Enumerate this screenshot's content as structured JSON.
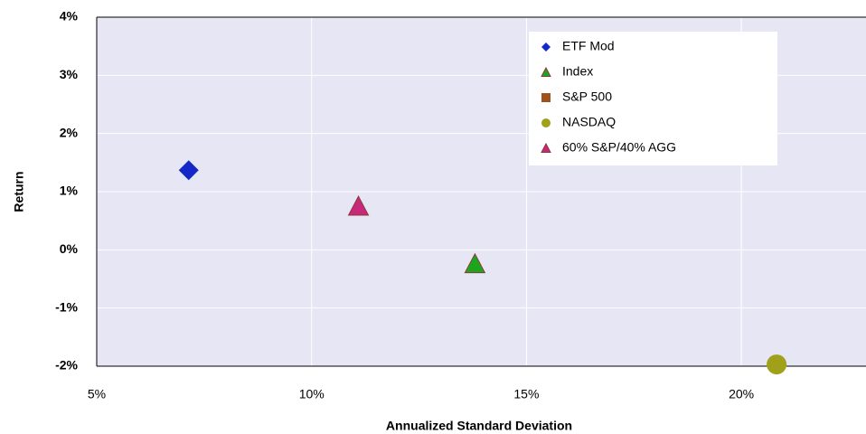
{
  "chart_data": {
    "type": "scatter",
    "xlabel": "Annualized Standard Deviation",
    "ylabel": "Return",
    "xlim": [
      5,
      22.9
    ],
    "ylim": [
      -2,
      4
    ],
    "xticks": [
      {
        "value": 5,
        "label": "5%"
      },
      {
        "value": 10,
        "label": "10%"
      },
      {
        "value": 15,
        "label": "15%"
      },
      {
        "value": 20,
        "label": "20%"
      }
    ],
    "yticks": [
      {
        "value": -2,
        "label": "-2%"
      },
      {
        "value": -1,
        "label": "-1%"
      },
      {
        "value": 0,
        "label": "0%"
      },
      {
        "value": 1,
        "label": "1%"
      },
      {
        "value": 2,
        "label": "2%"
      },
      {
        "value": 3,
        "label": "3%"
      },
      {
        "value": 4,
        "label": "4%"
      }
    ],
    "grid": true,
    "legend": "upper right",
    "series": [
      {
        "name": "ETF Mod",
        "color": "#1428c8",
        "marker": "diamond",
        "x": [
          7.14
        ],
        "values": [
          1.37
        ]
      },
      {
        "name": "Index",
        "color": "#1ea51e",
        "marker": "triangle",
        "x": [
          13.8
        ],
        "values": [
          -0.24
        ]
      },
      {
        "name": "S&P 500",
        "color": "#a0521a",
        "marker": "square",
        "x": [],
        "values": []
      },
      {
        "name": "NASDAQ",
        "color": "#a0a01a",
        "marker": "circle",
        "x": [
          20.82
        ],
        "values": [
          -1.97
        ]
      },
      {
        "name": "60% S&P/40% AGG",
        "color": "#c8287a",
        "marker": "triangle",
        "x": [
          11.09
        ],
        "values": [
          0.75
        ]
      }
    ]
  }
}
